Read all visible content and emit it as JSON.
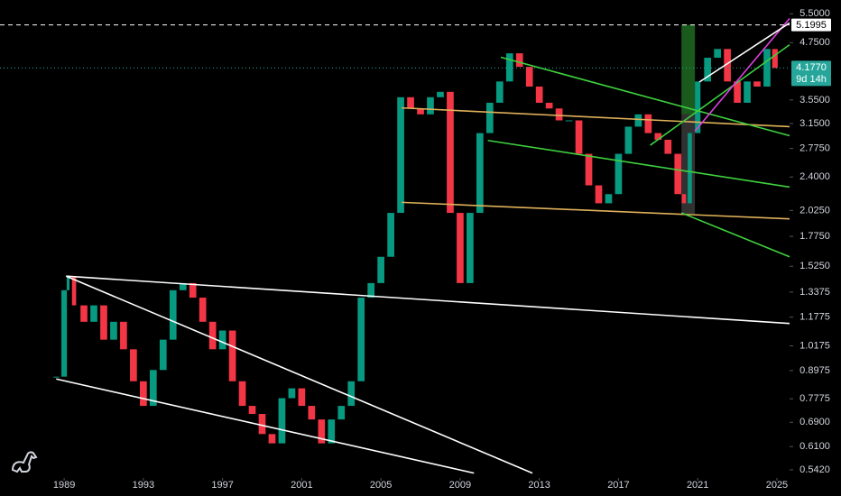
{
  "chart_data": {
    "type": "candlestick",
    "background": "#000000",
    "log_scale": true,
    "grid": false,
    "xlim": [
      1985.76,
      2025.64
    ],
    "xticks": [
      1989,
      1993,
      1997,
      2001,
      2005,
      2009,
      2013,
      2017,
      2021,
      2025
    ],
    "ylim": [
      0.52,
      5.9
    ],
    "yticks": [
      {
        "value": 5.5,
        "label": "5.5000"
      },
      {
        "value": 4.75,
        "label": "4.7500"
      },
      {
        "value": 3.55,
        "label": "3.5500"
      },
      {
        "value": 3.15,
        "label": "3.1500"
      },
      {
        "value": 2.775,
        "label": "2.7750"
      },
      {
        "value": 2.4,
        "label": "2.4000"
      },
      {
        "value": 2.025,
        "label": "2.0250"
      },
      {
        "value": 1.775,
        "label": "1.7750"
      },
      {
        "value": 1.525,
        "label": "1.5250"
      },
      {
        "value": 1.3375,
        "label": "1.3375"
      },
      {
        "value": 1.1775,
        "label": "1.1775"
      },
      {
        "value": 1.0175,
        "label": "1.0175"
      },
      {
        "value": 0.8975,
        "label": "0.8975"
      },
      {
        "value": 0.7775,
        "label": "0.7775"
      },
      {
        "value": 0.69,
        "label": "0.6900"
      },
      {
        "value": 0.61,
        "label": "0.6100"
      },
      {
        "value": 0.542,
        "label": "0.5420"
      }
    ],
    "series": [
      {
        "up_color": "#089981",
        "down_color": "#f23645",
        "x": [
          1988.6,
          1989.0,
          1989.2,
          1989.5,
          1990.0,
          1990.5,
          1991.0,
          1991.5,
          1992.0,
          1992.5,
          1993.0,
          1993.5,
          1994.0,
          1994.5,
          1995.0,
          1995.5,
          1996.0,
          1996.5,
          1997.0,
          1997.5,
          1998.0,
          1998.5,
          1999.0,
          1999.5,
          2000.0,
          2000.5,
          2001.0,
          2001.5,
          2002.0,
          2002.5,
          2003.0,
          2003.5,
          2004.0,
          2004.5,
          2005.0,
          2005.5,
          2006.0,
          2006.5,
          2007.0,
          2007.5,
          2008.0,
          2008.5,
          2009.0,
          2009.5,
          2010.0,
          2010.5,
          2011.0,
          2011.5,
          2012.0,
          2012.5,
          2013.0,
          2013.5,
          2014.0,
          2014.5,
          2015.0,
          2015.5,
          2016.0,
          2016.5,
          2017.0,
          2017.5,
          2018.0,
          2018.5,
          2019.0,
          2019.5,
          2020.0,
          2020.3,
          2020.6,
          2021.0,
          2021.5,
          2022.0,
          2022.5,
          2023.0,
          2023.5,
          2024.0,
          2024.5,
          2024.9
        ],
        "values": [
          0.87,
          1.35,
          1.45,
          1.25,
          1.15,
          1.25,
          1.05,
          1.15,
          1.0,
          0.85,
          0.75,
          0.9,
          1.05,
          1.35,
          1.4,
          1.3,
          1.15,
          1.0,
          1.1,
          0.85,
          0.75,
          0.72,
          0.65,
          0.62,
          0.78,
          0.82,
          0.75,
          0.7,
          0.62,
          0.7,
          0.75,
          0.85,
          1.3,
          1.4,
          1.6,
          2.0,
          3.6,
          3.4,
          3.3,
          3.6,
          3.7,
          2.0,
          1.4,
          2.0,
          3.0,
          3.5,
          3.9,
          4.5,
          4.2,
          3.8,
          3.5,
          3.4,
          3.2,
          3.2,
          2.7,
          2.3,
          2.1,
          2.2,
          2.7,
          3.1,
          3.3,
          3.0,
          2.9,
          2.7,
          2.2,
          2.1,
          3.0,
          3.9,
          4.4,
          4.6,
          3.9,
          3.5,
          3.9,
          3.8,
          4.6,
          4.177
        ]
      }
    ],
    "zones": [
      {
        "x": [
          2020.18,
          2020.86
        ],
        "y": [
          3.3,
          5.2
        ],
        "color": "#1e6b22"
      },
      {
        "x": [
          2020.18,
          2020.86
        ],
        "y": [
          1.99,
          3.3
        ],
        "color": "#3a3a3a"
      }
    ],
    "lines": [
      {
        "x": [
          1988.6,
          2009.7
        ],
        "y": [
          0.86,
          0.533
        ],
        "color": "#ffffff"
      },
      {
        "x": [
          1989.1,
          2012.65
        ],
        "y": [
          1.45,
          0.533
        ],
        "color": "#ffffff"
      },
      {
        "x": [
          1989.1,
          2025.64
        ],
        "y": [
          1.45,
          1.14
        ],
        "color": "#ffffff"
      },
      {
        "x": [
          2006.05,
          2025.64
        ],
        "y": [
          3.41,
          3.1
        ],
        "color": "#e0b15a"
      },
      {
        "x": [
          2006.05,
          2025.64
        ],
        "y": [
          2.11,
          1.94
        ],
        "color": "#e0b15a"
      },
      {
        "x": [
          2011.06,
          2025.64
        ],
        "y": [
          4.41,
          2.96
        ],
        "color": "#3ed13e"
      },
      {
        "x": [
          2010.4,
          2025.64
        ],
        "y": [
          2.89,
          2.28
        ],
        "color": "#3ed13e"
      },
      {
        "x": [
          2020.18,
          2025.64
        ],
        "y": [
          2.0,
          1.6
        ],
        "color": "#3ed13e"
      },
      {
        "x": [
          2018.6,
          2025.64
        ],
        "y": [
          2.82,
          4.7
        ],
        "color": "#3ed13e"
      },
      {
        "x": [
          2020.86,
          2025.64
        ],
        "y": [
          3.03,
          5.37
        ],
        "color": "#e040e0"
      },
      {
        "x": [
          2021.09,
          2025.64
        ],
        "y": [
          3.89,
          5.25
        ],
        "color": "#ffffff"
      }
    ],
    "price_lines": [
      {
        "value": 5.1995,
        "label": "5.1995",
        "color": "#ffffff",
        "text_color": "#000000",
        "style": "dashed"
      },
      {
        "value": 4.177,
        "label": "4.1770",
        "countdown": "9d 14h",
        "color": "#26a69a",
        "text_color": "#ffffff",
        "style": "dotted"
      }
    ]
  }
}
